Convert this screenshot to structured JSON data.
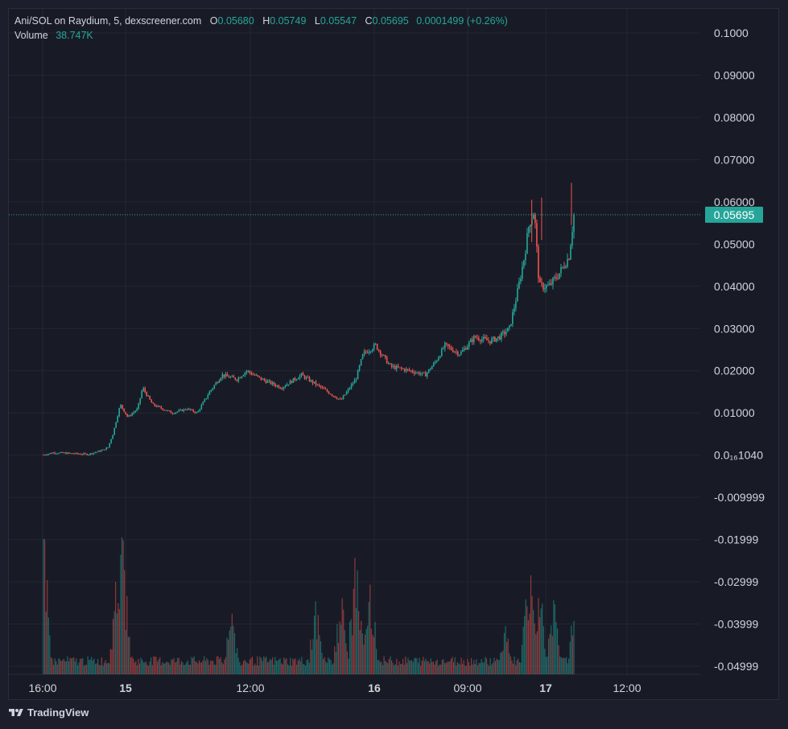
{
  "legend": {
    "symbol": "Ani/SOL on Raydium, 5, dexscreener.com",
    "o_label": "O",
    "o": "0.05680",
    "h_label": "H",
    "h": "0.05749",
    "l_label": "L",
    "l": "0.05547",
    "c_label": "C",
    "c": "0.05695",
    "change": "0.0001499 (+0.26%)",
    "volume_label": "Volume",
    "volume": "38.747K"
  },
  "price_axis": {
    "ticks": [
      "0.1000",
      "0.09000",
      "0.08000",
      "0.07000",
      "0.06000",
      "0.05000",
      "0.04000",
      "0.03000",
      "0.02000",
      "0.01000",
      "0.0₁₆1040",
      "-0.009999",
      "-0.01999",
      "-0.02999",
      "-0.03999",
      "-0.04999"
    ],
    "last_price": "0.05695"
  },
  "time_axis": {
    "labels": [
      {
        "text": "16:00",
        "bold": false
      },
      {
        "text": "15",
        "bold": true
      },
      {
        "text": "12:00",
        "bold": false
      },
      {
        "text": "16",
        "bold": true
      },
      {
        "text": "09:00",
        "bold": false
      },
      {
        "text": "17",
        "bold": true
      },
      {
        "text": "12:00",
        "bold": false
      }
    ]
  },
  "colors": {
    "up": "#26a69a",
    "down": "#ef5350",
    "grid": "#232733",
    "bg": "#181b26",
    "axis_text": "#d1d4dc"
  },
  "brand": "TradingView",
  "chart_data": {
    "type": "candlestick",
    "title": "Ani/SOL on Raydium, 5, dexscreener.com",
    "ylim": [
      -0.04999,
      0.1
    ],
    "x_start": "14 16:00",
    "x_end": "17 ~09:30",
    "price_path": [
      [
        0.0,
        0.0001
      ],
      [
        0.02,
        0.0006
      ],
      [
        0.06,
        0.0004
      ],
      [
        0.09,
        0.0002
      ],
      [
        0.12,
        0.0012
      ],
      [
        0.13,
        0.0018
      ],
      [
        0.14,
        0.005
      ],
      [
        0.155,
        0.012
      ],
      [
        0.17,
        0.009
      ],
      [
        0.19,
        0.011
      ],
      [
        0.2,
        0.016
      ],
      [
        0.22,
        0.012
      ],
      [
        0.26,
        0.01
      ],
      [
        0.29,
        0.011
      ],
      [
        0.31,
        0.01
      ],
      [
        0.335,
        0.015
      ],
      [
        0.36,
        0.019
      ],
      [
        0.39,
        0.018
      ],
      [
        0.41,
        0.02
      ],
      [
        0.44,
        0.018
      ],
      [
        0.48,
        0.016
      ],
      [
        0.52,
        0.019
      ],
      [
        0.56,
        0.016
      ],
      [
        0.6,
        0.013
      ],
      [
        0.63,
        0.018
      ],
      [
        0.645,
        0.024
      ],
      [
        0.67,
        0.026
      ],
      [
        0.7,
        0.021
      ],
      [
        0.74,
        0.02
      ],
      [
        0.77,
        0.019
      ],
      [
        0.79,
        0.022
      ],
      [
        0.81,
        0.026
      ],
      [
        0.84,
        0.024
      ],
      [
        0.87,
        0.028
      ],
      [
        0.9,
        0.027
      ],
      [
        0.92,
        0.028
      ],
      [
        0.94,
        0.03
      ],
      [
        0.955,
        0.038
      ],
      [
        0.97,
        0.047
      ],
      [
        0.98,
        0.055
      ],
      [
        0.99,
        0.058
      ],
      [
        1.0,
        0.04
      ],
      [
        1.02,
        0.04
      ],
      [
        1.04,
        0.043
      ],
      [
        1.06,
        0.047
      ],
      [
        1.07,
        0.05695
      ]
    ],
    "volume_peaks": [
      [
        0.0,
        0.95
      ],
      [
        0.15,
        0.9
      ],
      [
        0.16,
        0.95
      ],
      [
        0.38,
        0.45
      ],
      [
        0.55,
        0.5
      ],
      [
        0.6,
        0.55
      ],
      [
        0.63,
        0.8
      ],
      [
        0.66,
        0.7
      ],
      [
        0.93,
        0.35
      ],
      [
        0.98,
        0.75
      ],
      [
        1.0,
        0.7
      ],
      [
        1.03,
        0.55
      ],
      [
        1.07,
        0.45
      ]
    ]
  }
}
